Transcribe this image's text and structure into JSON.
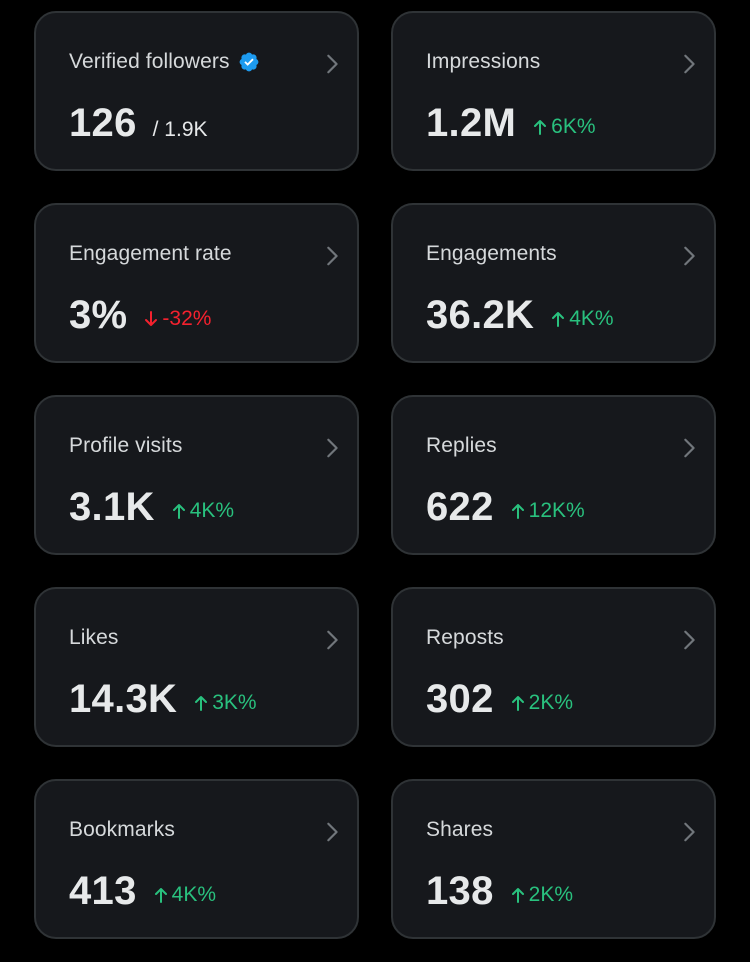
{
  "colors": {
    "background": "#000000",
    "card": "#16181c",
    "card_border": "#2f3336",
    "text": "#e7e9ea",
    "up": "#29c17e",
    "down": "#f4212e",
    "verified": "#1d9bf0"
  },
  "cards": [
    {
      "label": "Verified followers",
      "value": "126",
      "total": "/ 1.9K",
      "verified": true,
      "icon": "verified-badge-icon"
    },
    {
      "label": "Impressions",
      "value": "1.2M",
      "delta": "6K%",
      "direction": "up"
    },
    {
      "label": "Engagement rate",
      "value": "3%",
      "delta": "-32%",
      "direction": "down"
    },
    {
      "label": "Engagements",
      "value": "36.2K",
      "delta": "4K%",
      "direction": "up"
    },
    {
      "label": "Profile visits",
      "value": "3.1K",
      "delta": "4K%",
      "direction": "up"
    },
    {
      "label": "Replies",
      "value": "622",
      "delta": "12K%",
      "direction": "up"
    },
    {
      "label": "Likes",
      "value": "14.3K",
      "delta": "3K%",
      "direction": "up"
    },
    {
      "label": "Reposts",
      "value": "302",
      "delta": "2K%",
      "direction": "up"
    },
    {
      "label": "Bookmarks",
      "value": "413",
      "delta": "4K%",
      "direction": "up"
    },
    {
      "label": "Shares",
      "value": "138",
      "delta": "2K%",
      "direction": "up"
    }
  ]
}
